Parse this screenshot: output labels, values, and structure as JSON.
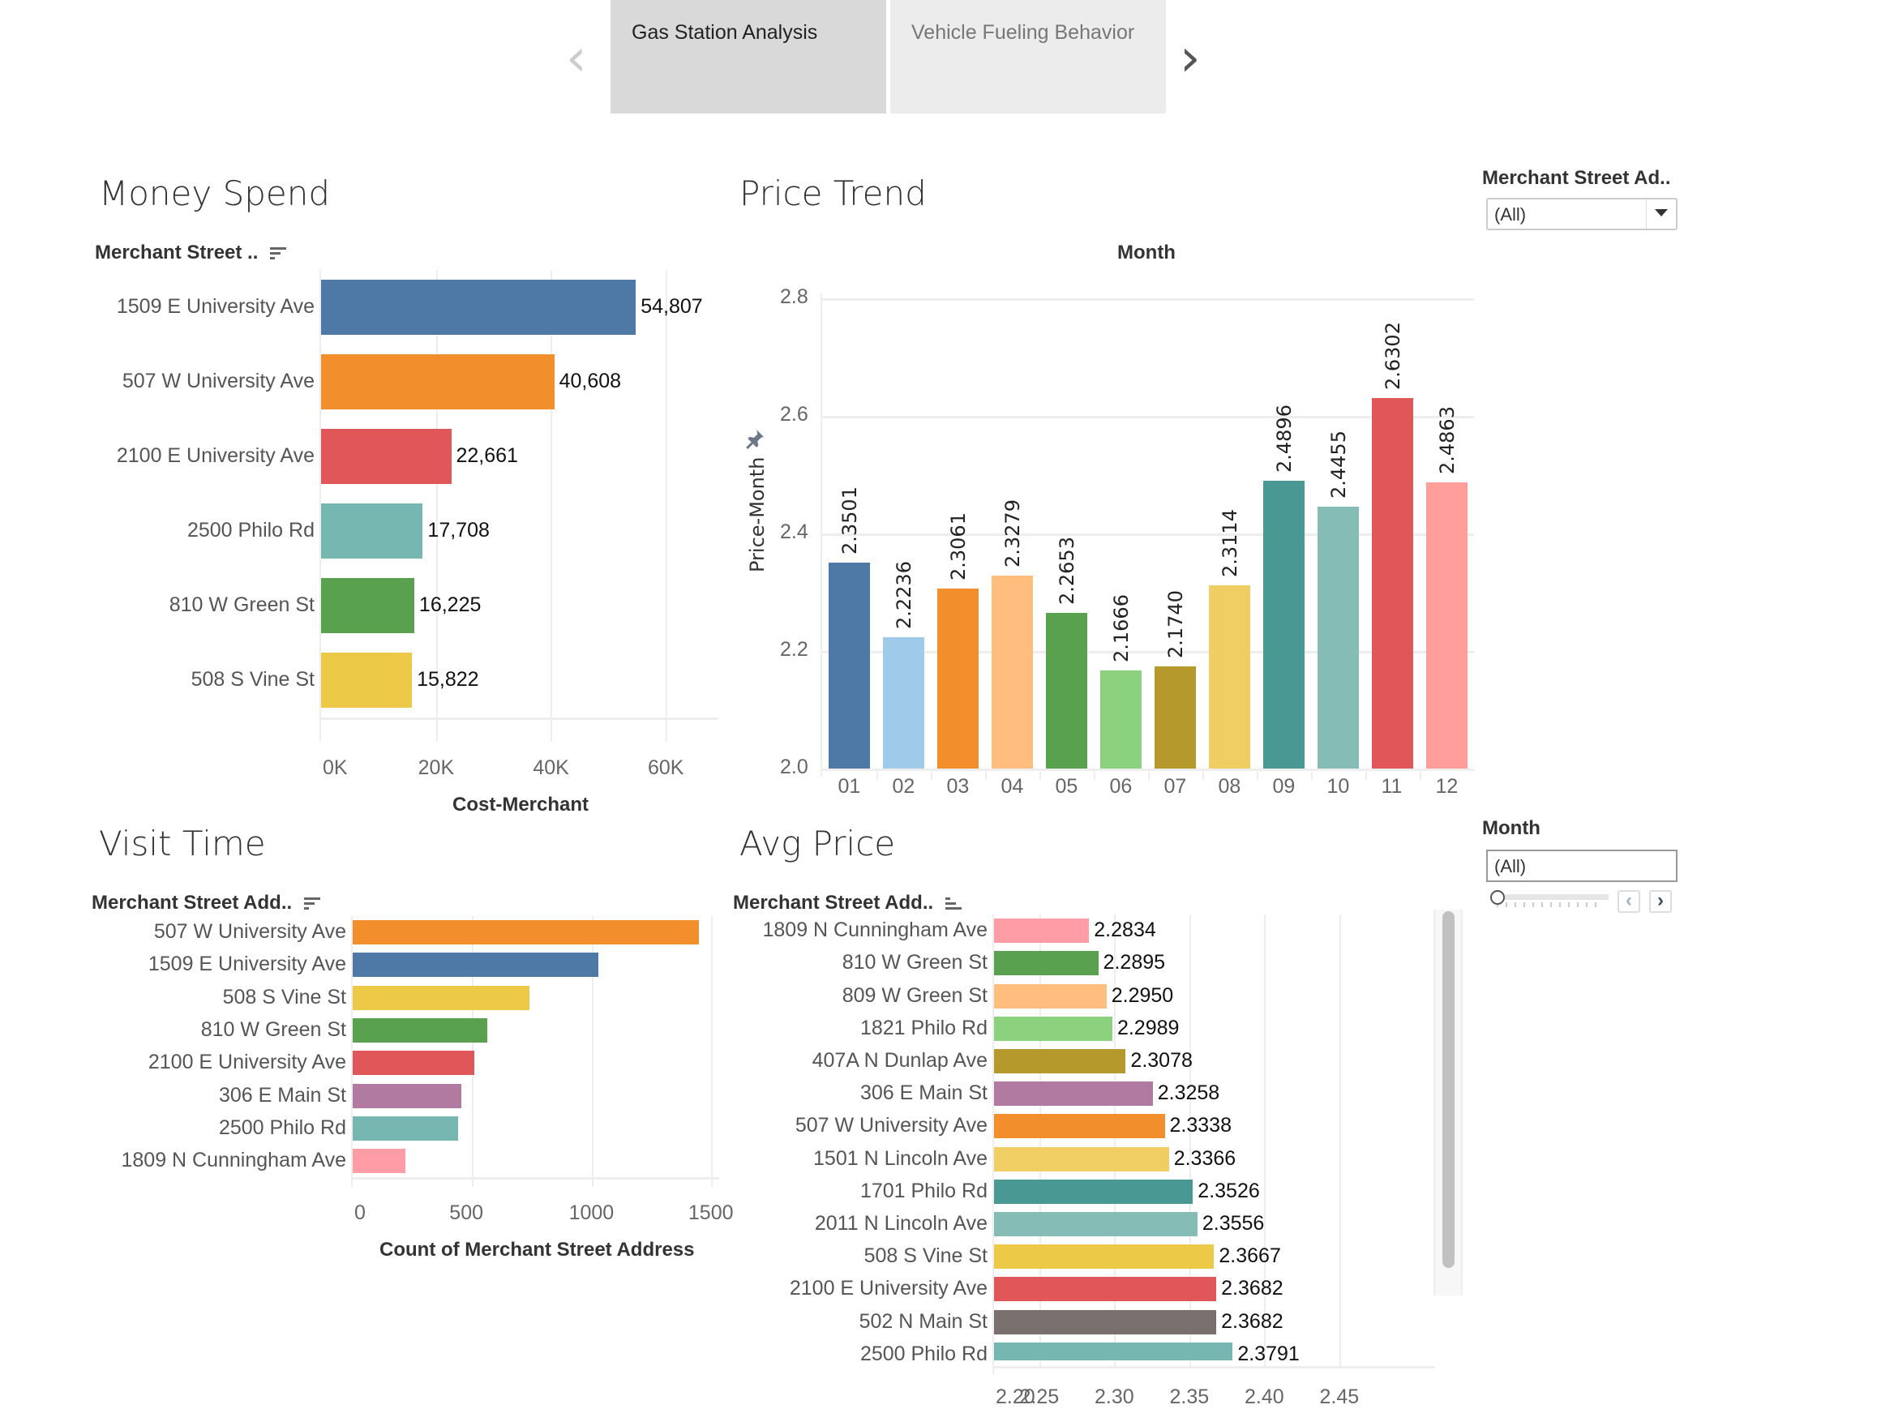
{
  "tabs": {
    "items": [
      {
        "label": "Gas Station Analysis",
        "active": true
      },
      {
        "label": "Vehicle Fueling Behavior",
        "active": false
      }
    ],
    "prev_icon": "chevron-left-icon",
    "next_icon": "chevron-right-icon"
  },
  "filters": {
    "merchant": {
      "label": "Merchant Street Ad..",
      "value": "(All)"
    },
    "month": {
      "label": "Month",
      "value": "(All)",
      "slider_position": 0
    }
  },
  "chart_data": [
    {
      "id": "money_spend",
      "type": "bar",
      "orientation": "horizontal",
      "title": "Money Spend",
      "row_header": "Merchant Street ..",
      "categories": [
        "1509 E University Ave",
        "507 W University Ave",
        "2100 E University Ave",
        "2500 Philo Rd",
        "810 W Green St",
        "508 S Vine St"
      ],
      "values": [
        54807,
        40608,
        22661,
        17708,
        16225,
        15822
      ],
      "value_labels": [
        "54,807",
        "40,608",
        "22,661",
        "17,708",
        "16,225",
        "15,822"
      ],
      "colors": [
        "#4e79a7",
        "#f28e2b",
        "#e15759",
        "#76b7b2",
        "#59a14f",
        "#edc948"
      ],
      "xlabel": "Cost-Merchant",
      "xticks": [
        "0K",
        "20K",
        "40K",
        "60K"
      ],
      "xtick_values": [
        0,
        20000,
        40000,
        60000
      ],
      "xlim": [
        0,
        72000
      ],
      "grid": true
    },
    {
      "id": "price_trend",
      "type": "bar",
      "orientation": "vertical",
      "title": "Price Trend",
      "header": "Month",
      "categories": [
        "01",
        "02",
        "03",
        "04",
        "05",
        "06",
        "07",
        "08",
        "09",
        "10",
        "11",
        "12"
      ],
      "values": [
        2.3501,
        2.2236,
        2.3061,
        2.3279,
        2.2653,
        2.1666,
        2.174,
        2.3114,
        2.4896,
        2.4455,
        2.6302,
        2.4863
      ],
      "value_labels": [
        "2.3501",
        "2.2236",
        "2.3061",
        "2.3279",
        "2.2653",
        "2.1666",
        "2.1740",
        "2.3114",
        "2.4896",
        "2.4455",
        "2.6302",
        "2.4863"
      ],
      "colors": [
        "#4e79a7",
        "#a0cbe8",
        "#f28e2b",
        "#ffbe7d",
        "#59a14f",
        "#8cd17d",
        "#b6992d",
        "#f1ce63",
        "#499894",
        "#86bcb6",
        "#e15759",
        "#ff9d9a"
      ],
      "ylabel": "Price-Month",
      "yticks": [
        "2.0",
        "2.2",
        "2.4",
        "2.6",
        "2.8"
      ],
      "ytick_values": [
        2.0,
        2.2,
        2.4,
        2.6,
        2.8
      ],
      "ylim": [
        2.0,
        2.84
      ],
      "grid": true
    },
    {
      "id": "visit_time",
      "type": "bar",
      "orientation": "horizontal",
      "title": "Visit Time",
      "row_header": "Merchant Street Add..",
      "categories": [
        "507 W University Ave",
        "1509 E University Ave",
        "508 S Vine St",
        "810 W Green St",
        "2100 E University Ave",
        "306 E Main St",
        "2500 Philo Rd",
        "1809 N Cunningham Ave"
      ],
      "values": [
        1450,
        1030,
        740,
        565,
        510,
        455,
        440,
        220
      ],
      "colors": [
        "#f28e2b",
        "#4e79a7",
        "#edc948",
        "#59a14f",
        "#e15759",
        "#b07aa1",
        "#76b7b2",
        "#ff9da7"
      ],
      "xlabel": "Count of Merchant Street Address",
      "xticks": [
        "0",
        "500",
        "1000",
        "1500"
      ],
      "xtick_values": [
        0,
        500,
        1000,
        1500
      ],
      "xlim": [
        0,
        1510
      ],
      "grid": true
    },
    {
      "id": "avg_price",
      "type": "bar",
      "orientation": "horizontal",
      "title": "Avg Price",
      "row_header": "Merchant Street Add..",
      "categories": [
        "1809 N Cunningham Ave",
        "810 W Green St",
        "809 W Green St",
        "1821 Philo Rd",
        "407A N Dunlap Ave",
        "306 E Main St",
        "507 W University Ave",
        "1501 N Lincoln Ave",
        "1701 Philo Rd",
        "2011 N Lincoln Ave",
        "508 S Vine St",
        "2100 E University Ave",
        "502 N Main St",
        "2500 Philo Rd"
      ],
      "values": [
        2.2834,
        2.2895,
        2.295,
        2.2989,
        2.3078,
        2.3258,
        2.3338,
        2.3366,
        2.3526,
        2.3556,
        2.3667,
        2.3682,
        2.3682,
        2.3791
      ],
      "value_labels": [
        "2.2834",
        "2.2895",
        "2.2950",
        "2.2989",
        "2.3078",
        "2.3258",
        "2.3338",
        "2.3366",
        "2.3526",
        "2.3556",
        "2.3667",
        "2.3682",
        "2.3682",
        "2.3791"
      ],
      "colors": [
        "#ff9da7",
        "#59a14f",
        "#ffbe7d",
        "#8cd17d",
        "#b6992d",
        "#b07aa1",
        "#f28e2b",
        "#f1ce63",
        "#499894",
        "#86bcb6",
        "#edc948",
        "#e15759",
        "#79706e",
        "#76b7b2"
      ],
      "xticks": [
        "2.20",
        "2.25",
        "2.30",
        "2.35",
        "2.40",
        "2.45"
      ],
      "xtick_values": [
        2.2,
        2.25,
        2.3,
        2.35,
        2.4,
        2.45
      ],
      "xlim": [
        2.2,
        2.45
      ],
      "grid": true
    }
  ]
}
